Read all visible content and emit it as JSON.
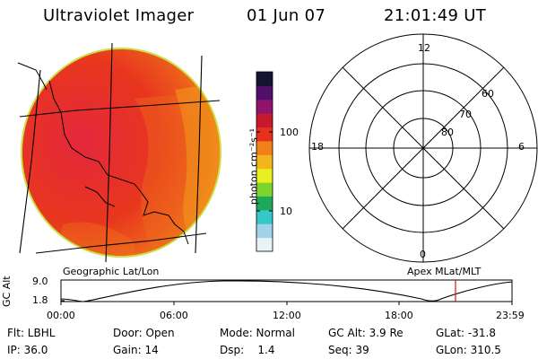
{
  "header": {
    "instrument": "Ultraviolet Imager",
    "date": "01 Jun 07",
    "time": "21:01:49 UT"
  },
  "colorbar": {
    "unit_label": "photon cm⁻²s⁻¹",
    "ticks": [
      "100",
      "10"
    ],
    "scale": "log",
    "colors": [
      "#e8f4f4",
      "#9fd4e8",
      "#34c8c8",
      "#1ea85a",
      "#7cd42c",
      "#e8f020",
      "#f4b41c",
      "#f08018",
      "#e8301e",
      "#c81830",
      "#90146e",
      "#50106a",
      "#141432"
    ]
  },
  "labels": {
    "geographic": "Geographic Lat/Lon",
    "apex": "Apex MLat/MLT"
  },
  "polar_plot": {
    "mlt_labels": {
      "top": "12",
      "bottom": "0",
      "left": "18",
      "right": "6"
    },
    "mlat_labels": [
      "60",
      "70",
      "80"
    ]
  },
  "altitude_plot": {
    "ylabel": "GC Alt",
    "yticks": [
      "9.0",
      "1.8"
    ],
    "xticks": [
      "00:00",
      "06:00",
      "12:00",
      "18:00",
      "23:59"
    ],
    "marker_color": "#e01010",
    "marker_time": "21:01:49"
  },
  "status": {
    "row1": [
      {
        "label": "Flt: LBHL"
      },
      {
        "label": "Door: Open"
      },
      {
        "label": "Mode: Normal"
      },
      {
        "label": "GC Alt: 3.9 Re"
      },
      {
        "label": "GLat: -31.8"
      }
    ],
    "row2": [
      {
        "label": "IP: 36.0"
      },
      {
        "label": "Gain: 14"
      },
      {
        "label": "Dsp:    1.4"
      },
      {
        "label": "Seq: 39"
      },
      {
        "label": "GLon: 310.5"
      }
    ]
  }
}
